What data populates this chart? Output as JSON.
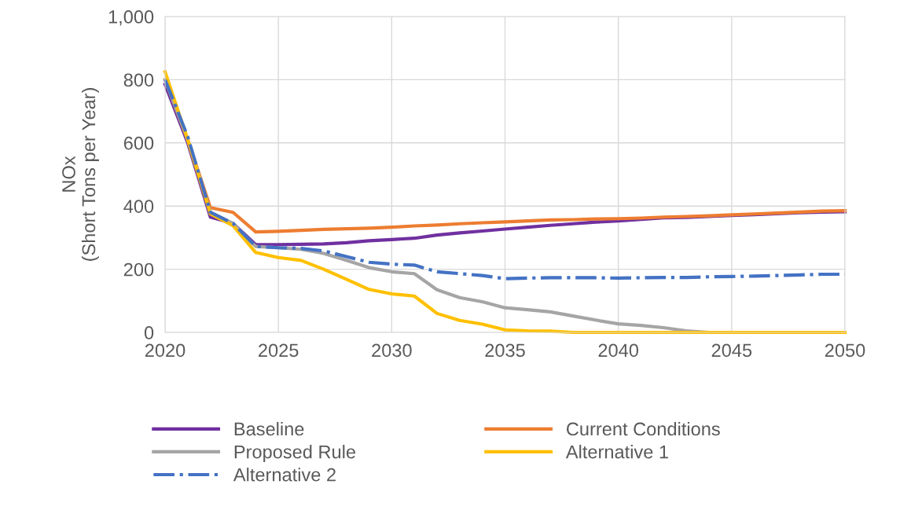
{
  "chart_data": {
    "type": "line",
    "ylabel": "NOx\n(Short Tons per Year)",
    "x": [
      2020,
      2021,
      2022,
      2023,
      2024,
      2025,
      2026,
      2027,
      2028,
      2029,
      2030,
      2031,
      2032,
      2033,
      2034,
      2035,
      2036,
      2037,
      2038,
      2039,
      2040,
      2041,
      2042,
      2043,
      2044,
      2045,
      2046,
      2047,
      2048,
      2049,
      2050
    ],
    "xlim": [
      2020,
      2050
    ],
    "xticks": [
      2020,
      2025,
      2030,
      2035,
      2040,
      2045,
      2050
    ],
    "ylim": [
      0,
      1000
    ],
    "yticks": [
      {
        "value": 0,
        "label": "0"
      },
      {
        "value": 200,
        "label": "200"
      },
      {
        "value": 400,
        "label": "400"
      },
      {
        "value": 600,
        "label": "600"
      },
      {
        "value": 800,
        "label": "800"
      },
      {
        "value": 1000,
        "label": "1,000"
      }
    ],
    "grid": true,
    "legend": "bottom",
    "marker": "none",
    "series": [
      {
        "name": "Baseline",
        "color": "#7030a0",
        "values": [
          785,
          600,
          365,
          345,
          278,
          278,
          279,
          280,
          284,
          290,
          294,
          298,
          308,
          315,
          321,
          327,
          333,
          339,
          344,
          349,
          353,
          358,
          363,
          364,
          367,
          370,
          373,
          376,
          379,
          381,
          382
        ]
      },
      {
        "name": "Current Conditions",
        "color": "#ed7d31",
        "values": [
          800,
          610,
          395,
          380,
          318,
          320,
          323,
          326,
          328,
          330,
          333,
          337,
          340,
          344,
          347,
          350,
          353,
          356,
          357,
          359,
          360,
          362,
          365,
          367,
          369,
          372,
          375,
          378,
          381,
          384,
          385
        ]
      },
      {
        "name": "Proposed Rule",
        "color": "#a5a5a5",
        "values": [
          800,
          610,
          380,
          345,
          272,
          268,
          263,
          250,
          228,
          205,
          192,
          186,
          135,
          110,
          97,
          78,
          72,
          65,
          52,
          39,
          27,
          22,
          15,
          5,
          0,
          0,
          null,
          null,
          null,
          null,
          null
        ]
      },
      {
        "name": "Alternative 1",
        "color": "#ffc000",
        "values": [
          825,
          610,
          375,
          338,
          253,
          237,
          228,
          200,
          168,
          136,
          122,
          115,
          60,
          38,
          26,
          8,
          5,
          4,
          0,
          0,
          0,
          0,
          0,
          0,
          0,
          0,
          0,
          0,
          0,
          0,
          0
        ]
      },
      {
        "name": "Alternative 2",
        "color": "#4472c4",
        "line_style": "dashdot",
        "values": [
          800,
          620,
          380,
          345,
          272,
          268,
          266,
          258,
          240,
          222,
          216,
          213,
          192,
          186,
          180,
          170,
          172,
          173,
          173,
          173,
          172,
          173,
          174,
          174,
          176,
          177,
          178,
          180,
          182,
          184,
          184
        ]
      }
    ]
  }
}
